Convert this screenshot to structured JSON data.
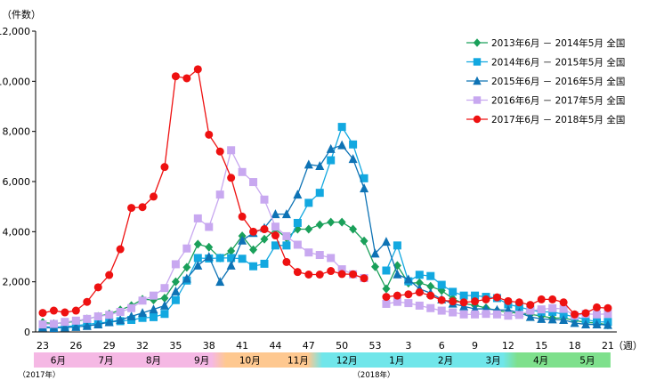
{
  "chart_data": {
    "type": "line",
    "unit_label": "（件数）",
    "week_suffix": "（週）",
    "ylim": [
      0,
      12000
    ],
    "y_ticks": [
      "0",
      "2,000",
      "4,000",
      "6,000",
      "8,000",
      "10,000",
      "12,000"
    ],
    "y_tick_values": [
      0,
      2000,
      4000,
      6000,
      8000,
      10000,
      12000
    ],
    "grid": false,
    "legend_position": "top-right",
    "weeks": [
      23,
      24,
      25,
      26,
      27,
      28,
      29,
      30,
      31,
      32,
      33,
      34,
      35,
      36,
      37,
      38,
      39,
      40,
      41,
      42,
      43,
      44,
      45,
      46,
      47,
      48,
      49,
      50,
      51,
      52,
      53,
      1,
      2,
      3,
      4,
      5,
      6,
      7,
      8,
      9,
      10,
      11,
      12,
      13,
      14,
      15,
      16,
      17,
      18,
      19,
      20,
      21
    ],
    "x_tick_labels": [
      "23",
      "26",
      "29",
      "32",
      "35",
      "38",
      "41",
      "44",
      "47",
      "50",
      "53",
      "3",
      "6",
      "9",
      "12",
      "15",
      "18",
      "21"
    ],
    "x_tick_indices": [
      0,
      3,
      6,
      9,
      12,
      15,
      18,
      21,
      24,
      27,
      30,
      33,
      36,
      39,
      42,
      45,
      48,
      51
    ],
    "series": [
      {
        "name": "2013年6月 － 2014年5月 全国",
        "color": "#1aa05a",
        "marker": "diamond",
        "values": [
          380,
          330,
          380,
          420,
          520,
          620,
          720,
          880,
          1050,
          1300,
          1280,
          1350,
          2000,
          2580,
          3500,
          3380,
          2950,
          3230,
          3830,
          3280,
          3700,
          4100,
          3750,
          4100,
          4100,
          4280,
          4380,
          4380,
          4100,
          3630,
          2600,
          1720,
          2650,
          1950,
          1960,
          1820,
          1650,
          1330,
          1130,
          1060,
          960,
          850,
          790,
          740,
          700,
          640,
          550,
          560,
          460,
          380,
          360,
          280
        ]
      },
      {
        "name": "2014年6月 － 2015年5月 全国",
        "color": "#12a8e0",
        "marker": "square",
        "values": [
          210,
          190,
          210,
          250,
          300,
          350,
          400,
          430,
          480,
          560,
          590,
          720,
          1270,
          2050,
          2950,
          2930,
          2950,
          2950,
          2920,
          2620,
          2720,
          3450,
          3450,
          4350,
          5150,
          5550,
          6850,
          8180,
          7480,
          6130,
          null,
          2450,
          3450,
          2020,
          2280,
          2230,
          1880,
          1600,
          1450,
          1450,
          1400,
          1350,
          1100,
          1000,
          880,
          800,
          800,
          700,
          600,
          500,
          400,
          400
        ]
      },
      {
        "name": "2015年6月 － 2016年5月 全国",
        "color": "#0e73b5",
        "marker": "triangle",
        "values": [
          180,
          160,
          180,
          200,
          240,
          300,
          390,
          480,
          620,
          760,
          900,
          1050,
          1620,
          2130,
          2650,
          3000,
          2000,
          2650,
          3650,
          3950,
          4150,
          4700,
          4700,
          5480,
          6680,
          6620,
          7300,
          7450,
          6900,
          5730,
          3130,
          3600,
          2300,
          2100,
          1720,
          1550,
          1300,
          1130,
          1020,
          920,
          920,
          880,
          880,
          770,
          600,
          520,
          500,
          480,
          360,
          300,
          300,
          280
        ]
      },
      {
        "name": "2016年6月 － 2017年5月 全国",
        "color": "#c8a8f0",
        "marker": "square",
        "values": [
          300,
          320,
          400,
          450,
          520,
          620,
          680,
          800,
          950,
          1250,
          1450,
          1750,
          2700,
          3330,
          4530,
          4190,
          5480,
          7250,
          6380,
          5980,
          5280,
          4200,
          3820,
          3480,
          3170,
          3070,
          2950,
          2500,
          2300,
          2150,
          null,
          1120,
          1200,
          1150,
          1050,
          950,
          850,
          780,
          700,
          700,
          720,
          700,
          650,
          680,
          850,
          900,
          950,
          920,
          650,
          720,
          700,
          720
        ]
      },
      {
        "name": "2017年6月 － 2018年5月 全国",
        "color": "#ee1111",
        "marker": "circle",
        "values": [
          760,
          850,
          780,
          850,
          1200,
          1780,
          2270,
          3300,
          4950,
          4980,
          5400,
          6580,
          10200,
          10120,
          10480,
          7870,
          7200,
          6150,
          4600,
          4000,
          4100,
          3850,
          2790,
          2390,
          2290,
          2290,
          2430,
          2310,
          2300,
          2140,
          null,
          1400,
          1450,
          1500,
          1580,
          1450,
          1270,
          1220,
          1180,
          1220,
          1300,
          1380,
          1230,
          1180,
          1080,
          1300,
          1300,
          1180,
          700,
          750,
          980,
          950
        ]
      }
    ],
    "month_bands": [
      {
        "label": "6月",
        "start": 0,
        "end": 4.4,
        "color": "#f5b8e4"
      },
      {
        "label": "7月",
        "start": 4.4,
        "end": 8.6,
        "color": "#f5b8e4"
      },
      {
        "label": "8月",
        "start": 8.6,
        "end": 13,
        "color": "#f5b8e4"
      },
      {
        "label": "9月",
        "start": 13,
        "end": 17.3,
        "color": "#f5b8e4"
      },
      {
        "label": "10月",
        "start": 17.3,
        "end": 21.7,
        "color": "#fec890"
      },
      {
        "label": "11月",
        "start": 21.7,
        "end": 26,
        "color": "#fec890"
      },
      {
        "label": "12月",
        "start": 26,
        "end": 30.5,
        "color": "#70e6ea"
      },
      {
        "label": "1月",
        "start": 30.5,
        "end": 35,
        "color": "#70e6ea"
      },
      {
        "label": "2月",
        "start": 35,
        "end": 39.3,
        "color": "#70e6ea"
      },
      {
        "label": "3月",
        "start": 39.3,
        "end": 43.6,
        "color": "#70e6ea"
      },
      {
        "label": "4月",
        "start": 43.6,
        "end": 47.9,
        "color": "#7ee08c"
      },
      {
        "label": "5月",
        "start": 47.9,
        "end": 52,
        "color": "#7ee08c"
      }
    ],
    "year_labels": [
      {
        "label": "（2017年）",
        "index": 0
      },
      {
        "label": "（2018年）",
        "index": 30.2
      }
    ]
  }
}
